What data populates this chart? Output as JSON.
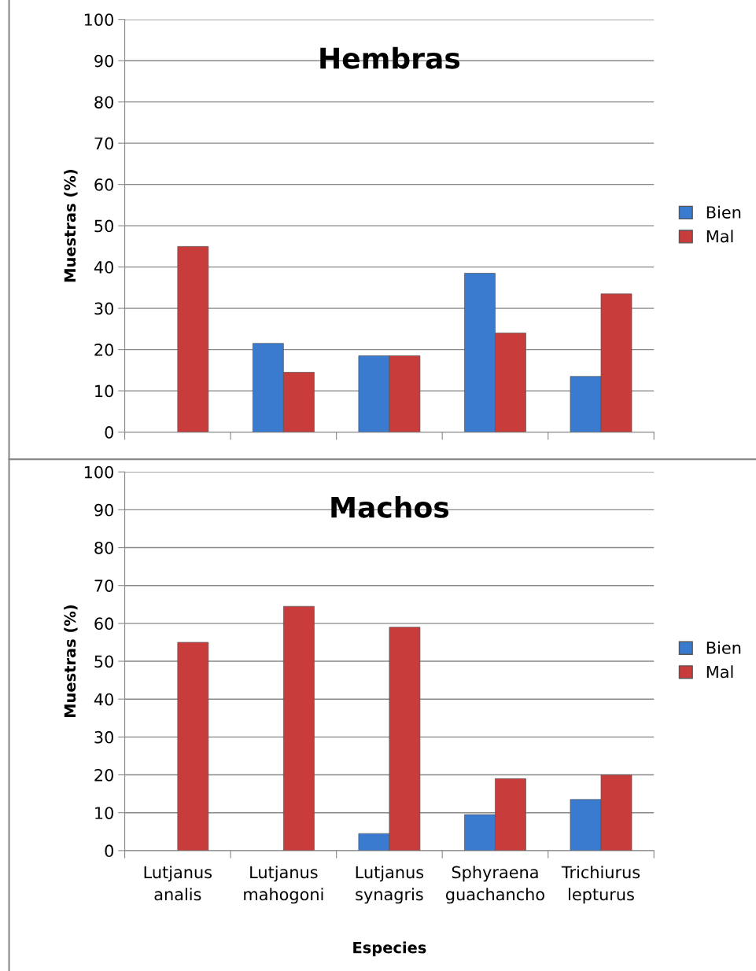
{
  "chart_data": [
    {
      "type": "bar",
      "title": "Hembras",
      "ylabel": "Muestras (%)",
      "categories": [
        null,
        null,
        null,
        null,
        null
      ],
      "series": [
        {
          "name": "Bien",
          "color": "#3a7bd0",
          "values": [
            null,
            21.5,
            18.5,
            38.5,
            13.5
          ]
        },
        {
          "name": "Mal",
          "color": "#c83c3c",
          "values": [
            45,
            14.5,
            18.5,
            24,
            33.5
          ]
        }
      ],
      "ylim": [
        0,
        100
      ],
      "yticks": [
        0,
        10,
        20,
        30,
        40,
        50,
        60,
        70,
        80,
        90,
        100
      ],
      "grid": "y",
      "legend": "right",
      "tick_labels": "y"
    },
    {
      "type": "bar",
      "title": "Machos",
      "ylabel": "Muestras (%)",
      "xlabel": "Especies",
      "categories": [
        "Lutjanus\nanalis",
        "Lutjanus\nmahogoni",
        "Lutjanus\nsynagris",
        "Sphyraena\nguachancho",
        "Trichiurus\nlepturus"
      ],
      "series": [
        {
          "name": "Bien",
          "color": "#3a7bd0",
          "values": [
            null,
            null,
            4.5,
            9.5,
            13.5
          ]
        },
        {
          "name": "Mal",
          "color": "#c83c3c",
          "values": [
            55,
            64.5,
            59,
            19,
            20
          ]
        }
      ],
      "ylim": [
        0,
        100
      ],
      "yticks": [
        0,
        10,
        20,
        30,
        40,
        50,
        60,
        70,
        80,
        90,
        100
      ],
      "grid": "y",
      "legend": "right"
    }
  ]
}
